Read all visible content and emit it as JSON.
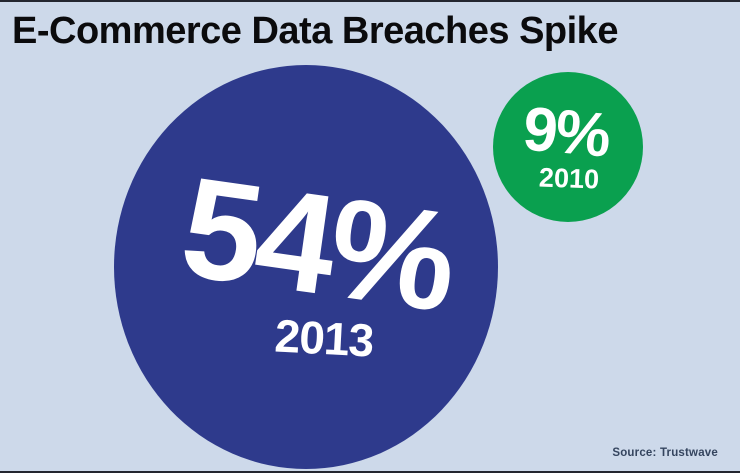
{
  "title": "E-Commerce Data Breaches Spike",
  "source": "Source: Trustwave",
  "bubbles": {
    "large": {
      "value": "54%",
      "year": "2013"
    },
    "small": {
      "value": "9%",
      "year": "2010"
    }
  },
  "colors": {
    "background": "#cdd9ea",
    "bubble_2013": "#2e3a8c",
    "bubble_2010": "#0aa04f",
    "title_text": "#0b0b0d",
    "bubble_text": "#ffffff",
    "source_text": "#35455f"
  },
  "chart_data": {
    "type": "area",
    "subtype": "proportional-area-bubbles",
    "title": "E-Commerce Data Breaches Spike",
    "categories": [
      "2013",
      "2010"
    ],
    "values": [
      54,
      9
    ],
    "unit": "%",
    "series": [
      {
        "name": "2013",
        "value": 54,
        "label": "54%",
        "color": "#2e3a8c"
      },
      {
        "name": "2010",
        "value": 9,
        "label": "9%",
        "color": "#0aa04f"
      }
    ],
    "legend_position": "none",
    "grid": false,
    "annotation": "Source: Trustwave"
  }
}
